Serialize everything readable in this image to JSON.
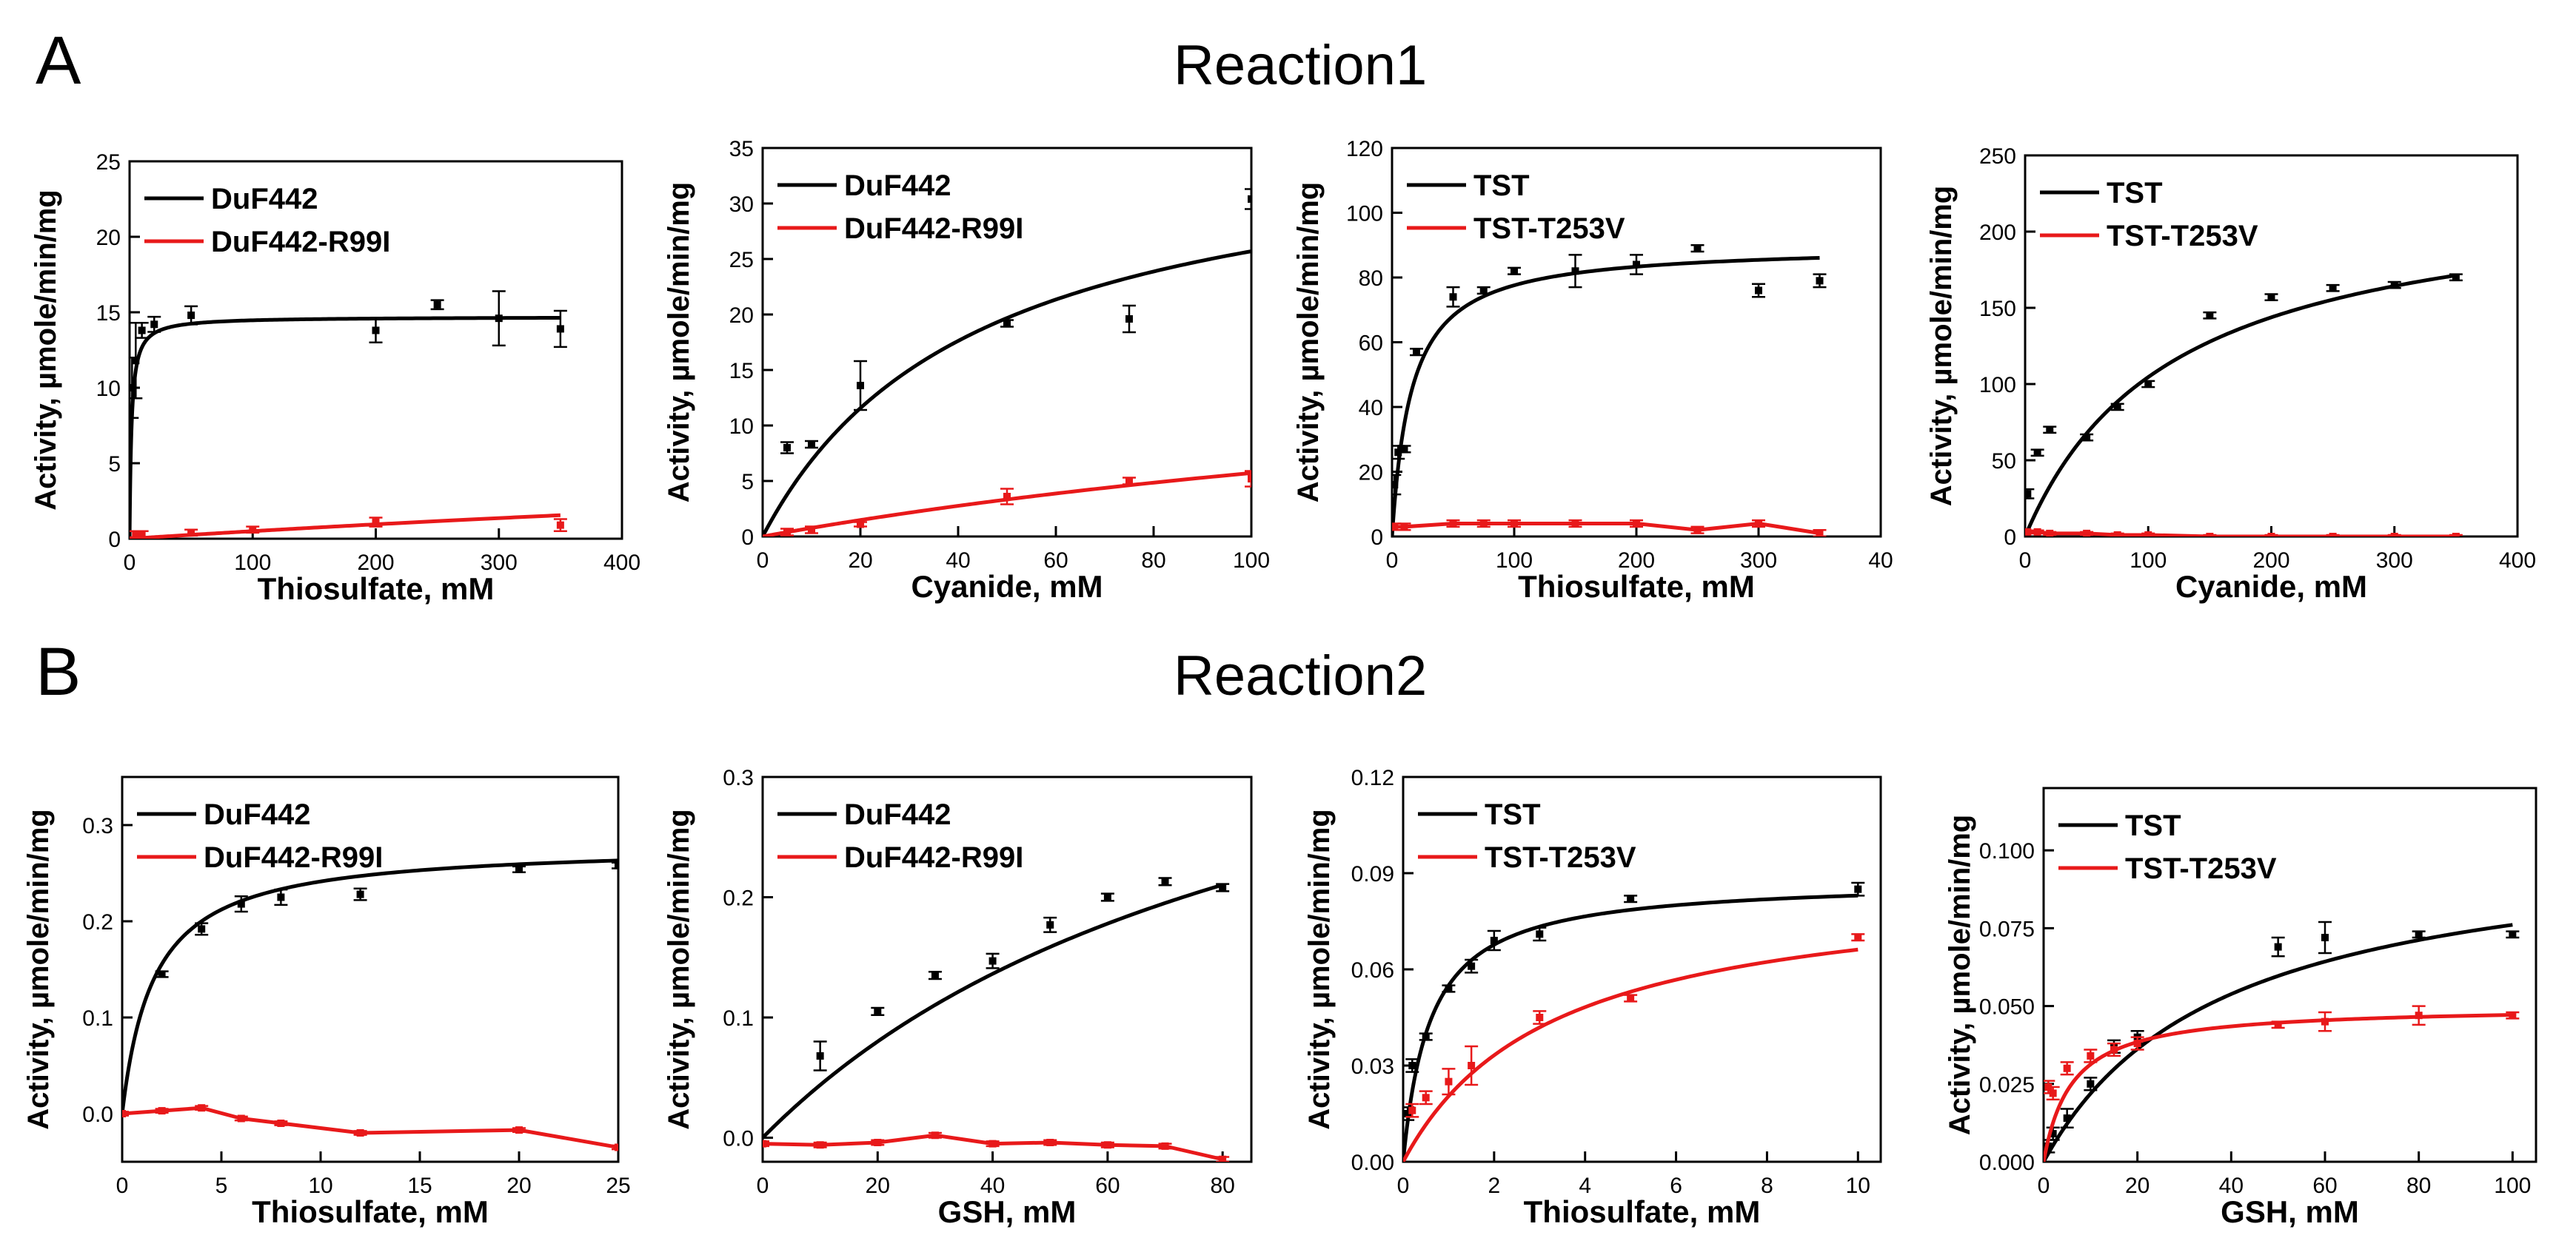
{
  "panels": {
    "a": "A",
    "b": "B"
  },
  "rows": {
    "reaction1": "Reaction1",
    "reaction2": "Reaction2"
  },
  "colors": {
    "wildtype": "#000000",
    "mutant": "#e8191a"
  },
  "chart_data": [
    {
      "type": "scatter",
      "xlabel": "Thiosulfate, mM",
      "ylabel": "Activity, µmole/min/mg",
      "xlim": [
        0,
        400
      ],
      "ylim": [
        0,
        25
      ],
      "xticks": [
        0,
        100,
        200,
        300,
        400
      ],
      "yticks": [
        0,
        5,
        10,
        15,
        20,
        25
      ],
      "legend": "top-left",
      "series": [
        {
          "name": "DuF442",
          "color": "#000000",
          "x": [
            2,
            5,
            10,
            20,
            50,
            200,
            250,
            300,
            350
          ],
          "y": [
            10.0,
            11.8,
            13.8,
            14.2,
            14.8,
            13.8,
            15.5,
            14.6,
            13.9
          ],
          "err": [
            2.0,
            2.5,
            0.5,
            0.5,
            0.6,
            0.8,
            0.3,
            1.8,
            1.2
          ],
          "fit": {
            "model": "mm",
            "vmax": 14.7,
            "km": 1.6
          }
        },
        {
          "name": "DuF442-R99I",
          "color": "#e8191a",
          "x": [
            5,
            10,
            50,
            100,
            200,
            350
          ],
          "y": [
            0.3,
            0.3,
            0.4,
            0.6,
            1.1,
            0.9
          ],
          "err": [
            0.2,
            0.2,
            0.2,
            0.2,
            0.3,
            0.4
          ],
          "fit": {
            "model": "mm",
            "vmax": 10,
            "km": 1900
          }
        }
      ]
    },
    {
      "type": "scatter",
      "xlabel": "Cyanide, mM",
      "ylabel": "Activity, µmole/min/mg",
      "xlim": [
        0,
        100
      ],
      "ylim": [
        0,
        35
      ],
      "xticks": [
        0,
        20,
        40,
        60,
        80,
        100
      ],
      "yticks": [
        0,
        5,
        10,
        15,
        20,
        25,
        30,
        35
      ],
      "legend": "top-left",
      "series": [
        {
          "name": "DuF442",
          "color": "#000000",
          "x": [
            5,
            10,
            20,
            50,
            75,
            100
          ],
          "y": [
            8.0,
            8.3,
            13.6,
            19.2,
            19.6,
            30.4
          ],
          "err": [
            0.5,
            0.3,
            2.2,
            0.3,
            1.2,
            0.9
          ],
          "fit": {
            "model": "mm",
            "vmax": 37,
            "km": 44
          }
        },
        {
          "name": "DuF442-R99I",
          "color": "#e8191a",
          "x": [
            5,
            10,
            20,
            50,
            75,
            100
          ],
          "y": [
            0.4,
            0.6,
            1.1,
            3.6,
            5.0,
            5.2
          ],
          "err": [
            0.3,
            0.3,
            0.2,
            0.7,
            0.3,
            0.7
          ],
          "fit": {
            "model": "mm",
            "vmax": 20,
            "km": 250
          }
        }
      ]
    },
    {
      "type": "scatter",
      "xlabel": "Thiosulfate, mM",
      "ylabel": "Activity, µmole/min/mg",
      "xlim": [
        0,
        400
      ],
      "ylim": [
        0,
        120
      ],
      "xticks": [
        0,
        100,
        200,
        300
      ],
      "xtick_labels": [
        "0",
        "100",
        "200",
        "300"
      ],
      "xtick_edge_label": "40",
      "yticks": [
        0,
        20,
        40,
        60,
        80,
        100,
        120
      ],
      "legend": "top-left",
      "series": [
        {
          "name": "TST",
          "color": "#000000",
          "x": [
            2,
            5,
            10,
            20,
            50,
            75,
            100,
            150,
            200,
            250,
            300,
            350
          ],
          "y": [
            16,
            26,
            27,
            57,
            74,
            76,
            82,
            82,
            84,
            89,
            76,
            79
          ],
          "err": [
            3,
            2,
            1,
            1,
            3,
            1,
            1,
            5,
            3,
            1,
            2,
            2
          ],
          "fit": {
            "model": "mm",
            "vmax": 90,
            "km": 16
          }
        },
        {
          "name": "TST-T253V",
          "color": "#e8191a",
          "x": [
            2,
            10,
            50,
            75,
            100,
            150,
            200,
            250,
            300,
            350
          ],
          "y": [
            3,
            3,
            4,
            4,
            4,
            4,
            4,
            2,
            4,
            1
          ],
          "err": [
            1,
            1,
            1,
            1,
            1,
            1,
            1,
            1,
            1,
            1
          ],
          "fit": {
            "model": "line"
          }
        }
      ]
    },
    {
      "type": "scatter",
      "xlabel": "Cyanide, mM",
      "ylabel": "Activity, µmole/min/mg",
      "xlim": [
        0,
        400
      ],
      "ylim": [
        0,
        250
      ],
      "xticks": [
        0,
        100,
        200,
        300,
        400
      ],
      "yticks": [
        0,
        50,
        100,
        150,
        200,
        250
      ],
      "legend": "top-left",
      "series": [
        {
          "name": "TST",
          "color": "#000000",
          "x": [
            2,
            10,
            20,
            50,
            75,
            100,
            150,
            200,
            250,
            300,
            350
          ],
          "y": [
            28,
            55,
            70,
            65,
            85,
            100,
            145,
            157,
            163,
            165,
            170
          ],
          "err": [
            3,
            2,
            2,
            2,
            2,
            2,
            2,
            2,
            2,
            2,
            2
          ],
          "fit": {
            "model": "mm",
            "vmax": 230,
            "km": 120
          }
        },
        {
          "name": "TST-T253V",
          "color": "#e8191a",
          "x": [
            2,
            10,
            20,
            50,
            75,
            100,
            150,
            200,
            250,
            300,
            350
          ],
          "y": [
            3,
            3,
            2,
            2,
            1,
            1,
            0,
            0,
            0,
            0,
            0
          ],
          "err": [
            1,
            1,
            1,
            1,
            1,
            1,
            1,
            1,
            1,
            1,
            1
          ],
          "fit": {
            "model": "line"
          }
        }
      ]
    },
    {
      "type": "scatter",
      "xlabel": "Thiosulfate, mM",
      "ylabel": "Activity, µmole/min/mg",
      "xlim": [
        0,
        25
      ],
      "ylim": [
        -0.05,
        0.35
      ],
      "xticks": [
        0,
        5,
        10,
        15,
        20,
        25
      ],
      "yticks": [
        0.0,
        0.1,
        0.2,
        0.3
      ],
      "ytick_labels": [
        "0.0",
        "0.1",
        "0.2",
        "0.3"
      ],
      "legend": "top-left",
      "series": [
        {
          "name": "DuF442",
          "color": "#000000",
          "x": [
            2,
            4,
            6,
            8,
            12,
            20,
            25
          ],
          "y": [
            0.145,
            0.192,
            0.218,
            0.225,
            0.228,
            0.254,
            0.258
          ],
          "err": [
            0.003,
            0.006,
            0.008,
            0.008,
            0.006,
            0.003,
            0.003
          ],
          "fit": {
            "model": "mm",
            "vmax": 0.28,
            "km": 1.6
          }
        },
        {
          "name": "DuF442-R99I",
          "color": "#e8191a",
          "x": [
            0,
            2,
            4,
            6,
            8,
            12,
            20,
            25
          ],
          "y": [
            0.0,
            0.003,
            0.006,
            -0.005,
            -0.01,
            -0.02,
            -0.017,
            -0.035
          ],
          "err": [
            0.002,
            0.002,
            0.002,
            0.002,
            0.002,
            0.002,
            0.002,
            0.002
          ],
          "fit": {
            "model": "line"
          }
        }
      ]
    },
    {
      "type": "scatter",
      "xlabel": "GSH, mM",
      "ylabel": "Activity, µmole/min/mg",
      "xlim": [
        0,
        85
      ],
      "ylim": [
        -0.02,
        0.3
      ],
      "xticks": [
        0,
        20,
        40,
        60,
        80
      ],
      "yticks": [
        0.0,
        0.1,
        0.2,
        0.3
      ],
      "ytick_labels": [
        "0.0",
        "0.1",
        "0.2",
        "0.3"
      ],
      "legend": "top-left",
      "series": [
        {
          "name": "DuF442",
          "color": "#000000",
          "x": [
            10,
            20,
            30,
            40,
            50,
            60,
            70,
            80
          ],
          "y": [
            0.068,
            0.105,
            0.135,
            0.147,
            0.177,
            0.2,
            0.213,
            0.208
          ],
          "err": [
            0.012,
            0.003,
            0.003,
            0.006,
            0.006,
            0.003,
            0.003,
            0.003
          ],
          "fit": {
            "model": "mm",
            "vmax": 0.46,
            "km": 95
          }
        },
        {
          "name": "DuF442-R99I",
          "color": "#e8191a",
          "x": [
            0,
            10,
            20,
            30,
            40,
            50,
            60,
            70,
            80
          ],
          "y": [
            -0.005,
            -0.006,
            -0.004,
            0.002,
            -0.005,
            -0.004,
            -0.006,
            -0.007,
            -0.018
          ],
          "err": [
            0.002,
            0.002,
            0.002,
            0.002,
            0.002,
            0.002,
            0.002,
            0.002,
            0.002
          ],
          "fit": {
            "model": "line"
          }
        }
      ]
    },
    {
      "type": "scatter",
      "xlabel": "Thiosulfate, mM",
      "ylabel": "Activity, µmole/min/mg",
      "xlim": [
        0,
        10.5
      ],
      "ylim": [
        0,
        0.12
      ],
      "xticks": [
        0,
        2,
        4,
        6,
        8,
        10
      ],
      "yticks": [
        0.0,
        0.03,
        0.06,
        0.09,
        0.12
      ],
      "ytick_labels": [
        "0.00",
        "0.03",
        "0.06",
        "0.09",
        "0.12"
      ],
      "legend": "top-left",
      "series": [
        {
          "name": "TST",
          "color": "#000000",
          "x": [
            0.1,
            0.2,
            0.5,
            1,
            1.5,
            2,
            3,
            5,
            10
          ],
          "y": [
            0.015,
            0.03,
            0.039,
            0.054,
            0.061,
            0.069,
            0.071,
            0.082,
            0.085
          ],
          "err": [
            0.002,
            0.002,
            0.001,
            0.001,
            0.002,
            0.003,
            0.002,
            0.001,
            0.002
          ],
          "fit": {
            "model": "mm",
            "vmax": 0.088,
            "km": 0.6
          }
        },
        {
          "name": "TST-T253V",
          "color": "#e8191a",
          "x": [
            0.2,
            0.5,
            1,
            1.5,
            3,
            5,
            10
          ],
          "y": [
            0.016,
            0.02,
            0.025,
            0.03,
            0.045,
            0.051,
            0.07
          ],
          "err": [
            0.002,
            0.002,
            0.004,
            0.006,
            0.002,
            0.001,
            0.001
          ],
          "fit": {
            "model": "mm",
            "vmax": 0.088,
            "km": 3.3
          }
        }
      ]
    },
    {
      "type": "scatter",
      "xlabel": "GSH, mM",
      "ylabel": "Activity, µmole/min/mg",
      "xlim": [
        0,
        105
      ],
      "ylim": [
        0,
        0.12
      ],
      "xticks": [
        0,
        20,
        40,
        60,
        80,
        100
      ],
      "yticks": [
        0.0,
        0.025,
        0.05,
        0.075,
        0.1
      ],
      "ytick_labels": [
        "0.000",
        "0.025",
        "0.050",
        "0.075",
        "0.100"
      ],
      "legend": "top-left",
      "series": [
        {
          "name": "TST",
          "color": "#000000",
          "x": [
            1,
            2,
            5,
            10,
            15,
            20,
            50,
            60,
            80,
            100
          ],
          "y": [
            0.005,
            0.009,
            0.014,
            0.025,
            0.037,
            0.04,
            0.069,
            0.072,
            0.073,
            0.073
          ],
          "err": [
            0.002,
            0.002,
            0.003,
            0.002,
            0.002,
            0.002,
            0.003,
            0.005,
            0.001,
            0.001
          ],
          "fit": {
            "model": "mm",
            "vmax": 0.105,
            "km": 38
          }
        },
        {
          "name": "TST-T253V",
          "color": "#e8191a",
          "x": [
            1,
            2,
            5,
            10,
            15,
            20,
            50,
            60,
            80,
            100
          ],
          "y": [
            0.024,
            0.022,
            0.03,
            0.034,
            0.036,
            0.038,
            0.044,
            0.045,
            0.047,
            0.047
          ],
          "err": [
            0.002,
            0.002,
            0.002,
            0.002,
            0.002,
            0.002,
            0.001,
            0.003,
            0.003,
            0.001
          ],
          "fit": {
            "model": "mm",
            "vmax": 0.05,
            "km": 6
          }
        }
      ]
    }
  ]
}
